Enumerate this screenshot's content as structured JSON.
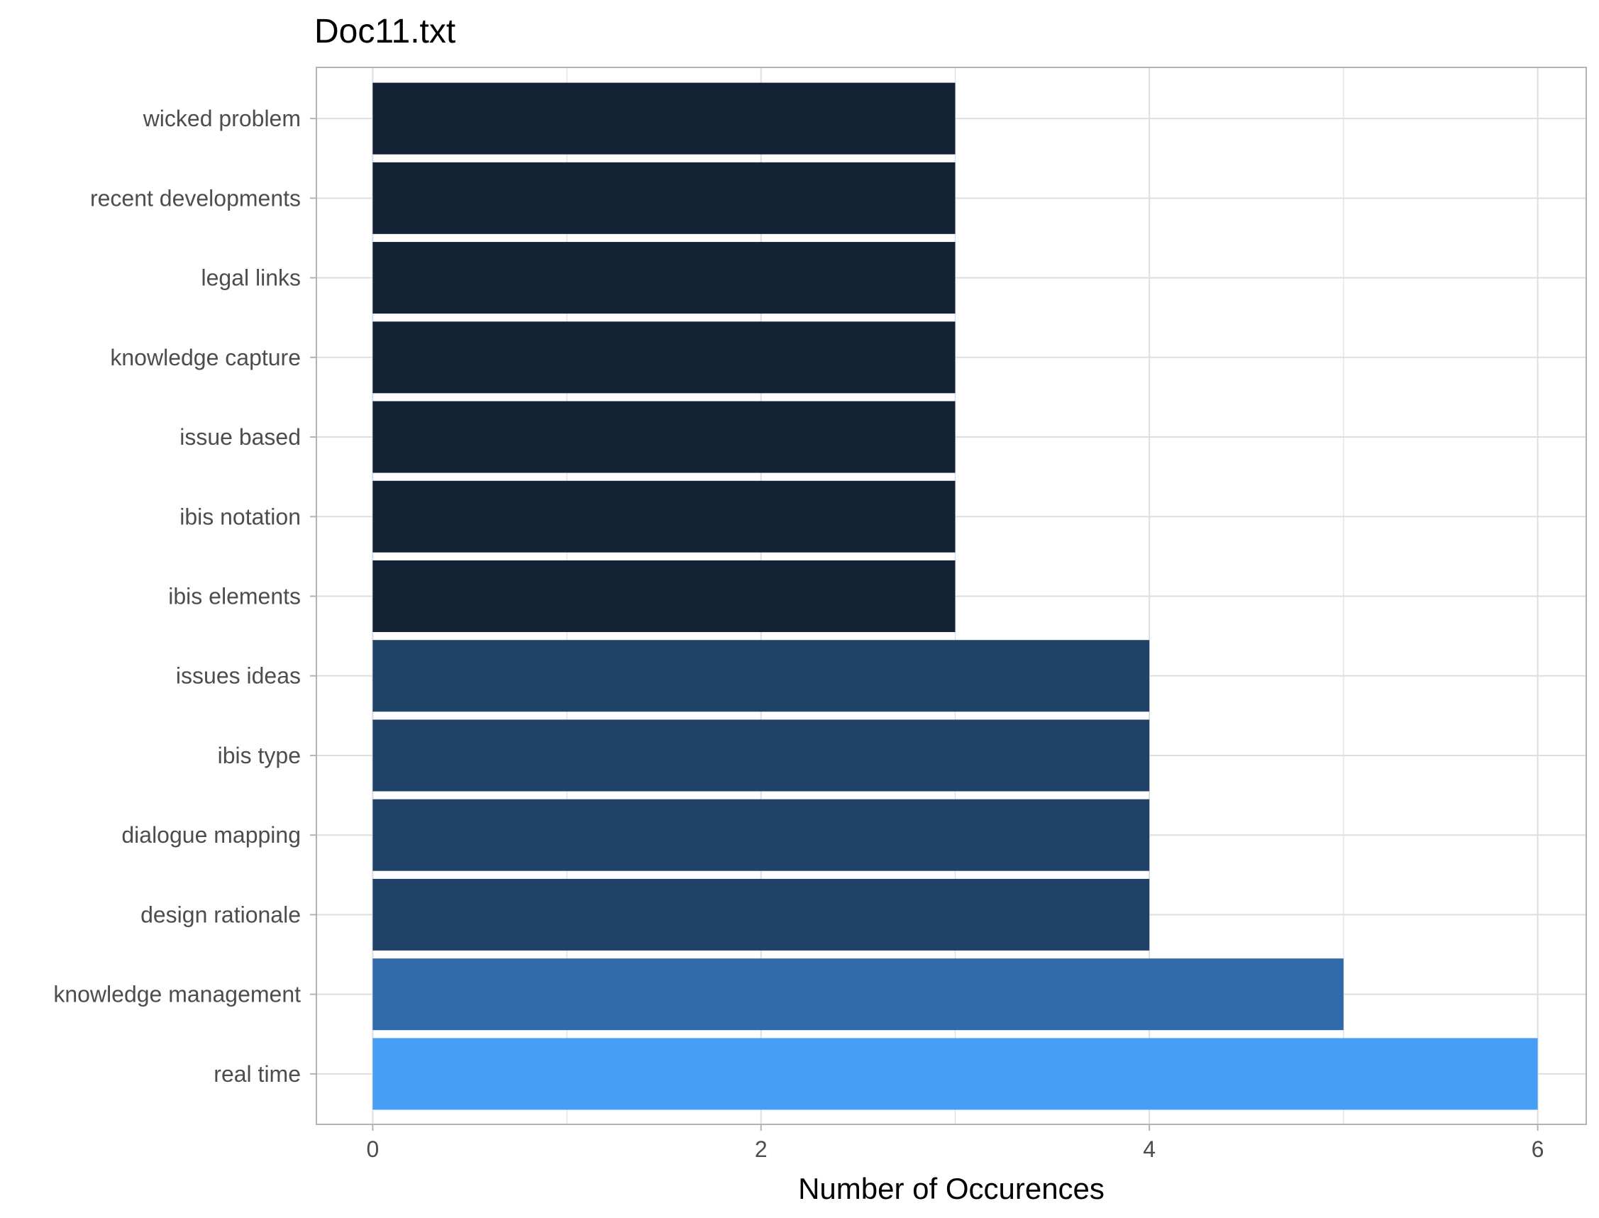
{
  "chart_data": {
    "type": "bar",
    "orientation": "horizontal",
    "title": "Doc11.txt",
    "xlabel": "Number of Occurences",
    "ylabel": "",
    "xlim": [
      -0.29,
      6.25
    ],
    "x_ticks": [
      0,
      2,
      4,
      6
    ],
    "grid": true,
    "categories": [
      "wicked problem",
      "recent developments",
      "legal links",
      "knowledge capture",
      "issue based",
      "ibis notation",
      "ibis elements",
      "issues ideas",
      "ibis type",
      "dialogue mapping",
      "design rationale",
      "knowledge management",
      "real time"
    ],
    "values": [
      3,
      3,
      3,
      3,
      3,
      3,
      3,
      4,
      4,
      4,
      4,
      5,
      6
    ],
    "colors": {
      "3": "#132235",
      "4": "#204268",
      "5": "#306aaa",
      "6": "#479ff5"
    },
    "panel_border": "#b3b3b3",
    "gridline_color": "#dedede"
  }
}
